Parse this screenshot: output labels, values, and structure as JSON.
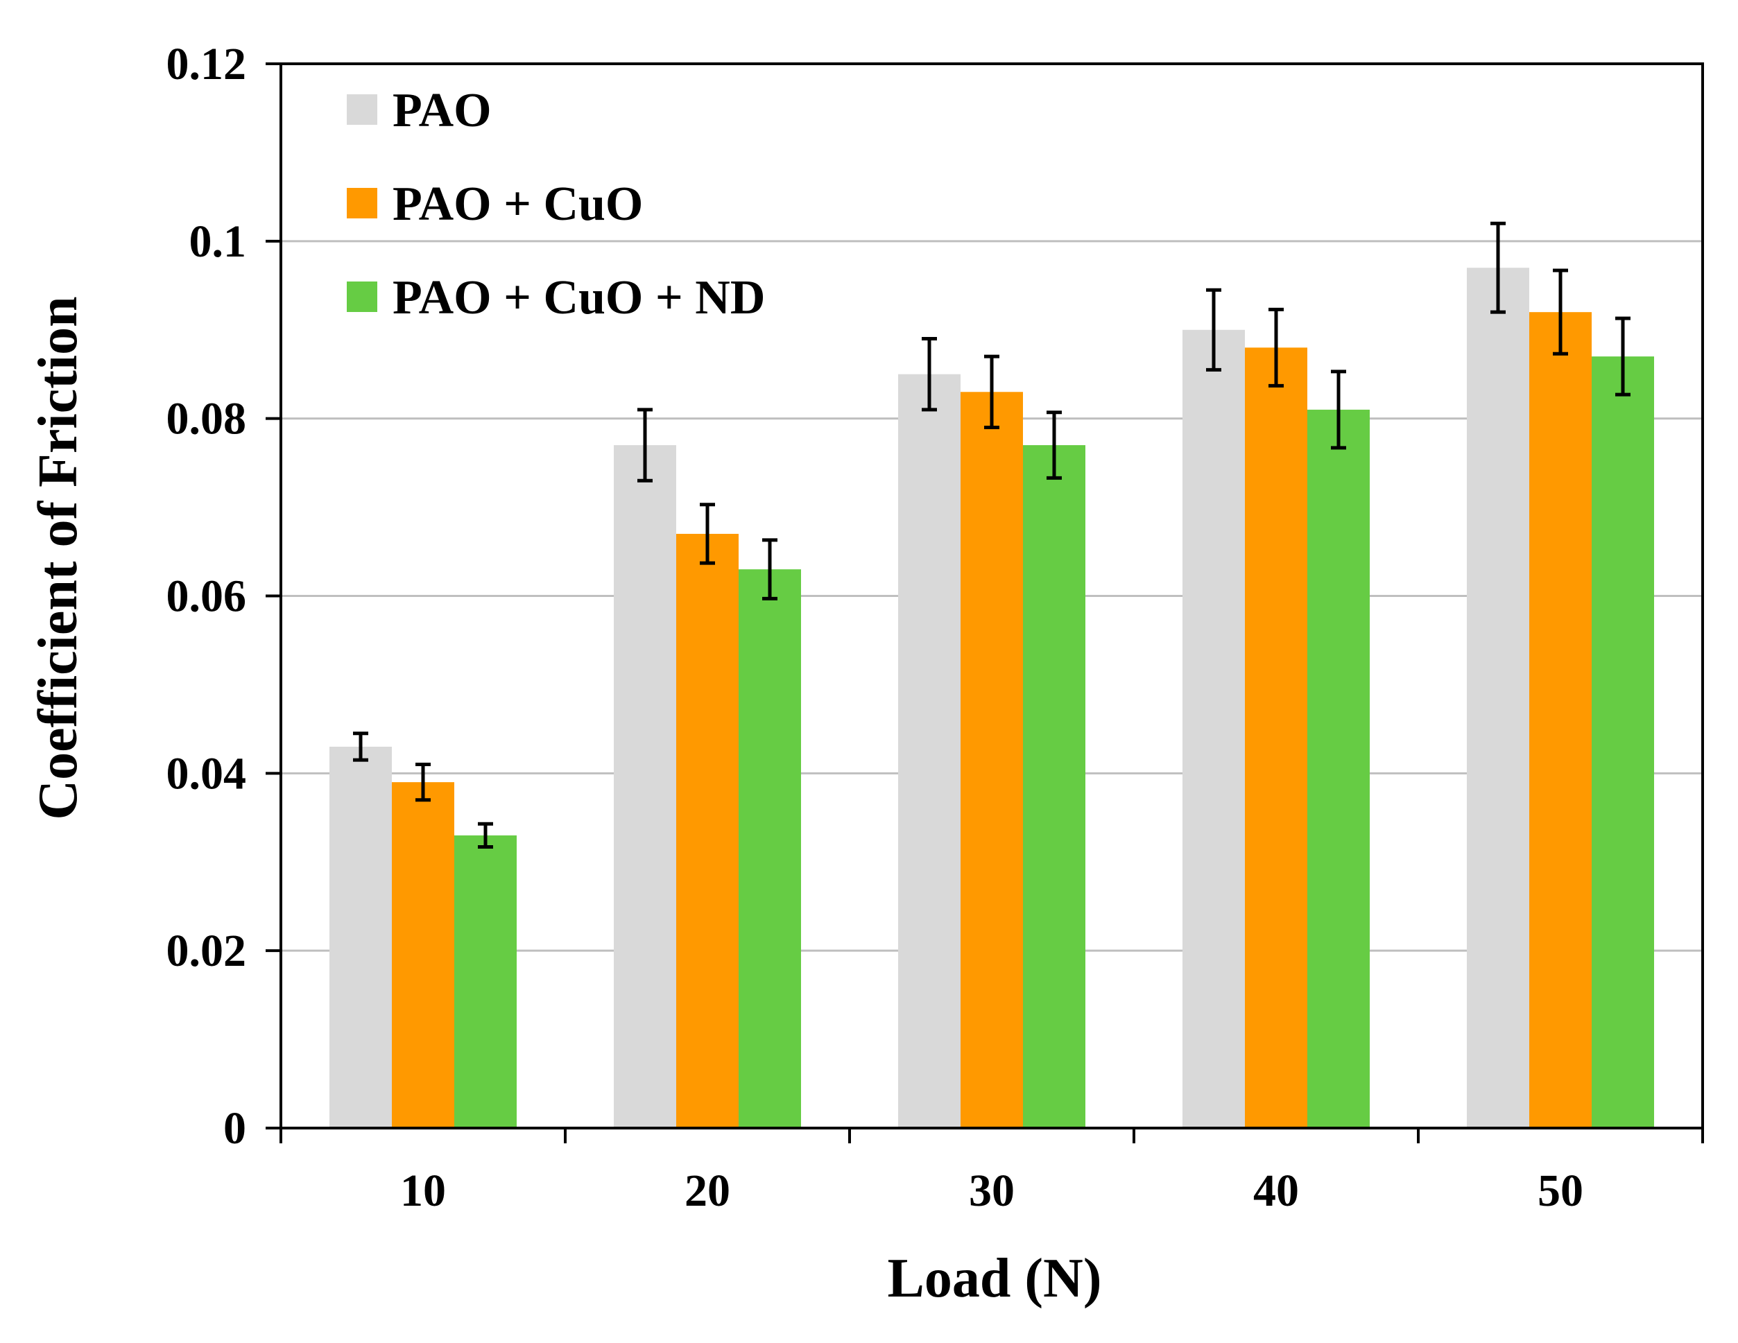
{
  "chart_data": {
    "type": "bar",
    "title": "",
    "xlabel": "Load (N)",
    "ylabel": "Coefficient of Friction",
    "categories": [
      "10",
      "20",
      "30",
      "40",
      "50"
    ],
    "ylim": [
      0,
      0.12
    ],
    "yticks": [
      0,
      0.02,
      0.04,
      0.06,
      0.08,
      0.1,
      0.12
    ],
    "ytick_labels": [
      "0",
      "0.02",
      "0.04",
      "0.06",
      "0.08",
      "0.1",
      "0.12"
    ],
    "grid": true,
    "legend_position": "top-left",
    "series": [
      {
        "name": "PAO",
        "color": "#d9d9d9",
        "values": [
          0.043,
          0.077,
          0.085,
          0.09,
          0.097
        ],
        "errors": [
          0.0015,
          0.004,
          0.004,
          0.0045,
          0.005
        ]
      },
      {
        "name": "PAO + CuO",
        "color": "#ff9900",
        "values": [
          0.039,
          0.067,
          0.083,
          0.088,
          0.092
        ],
        "errors": [
          0.002,
          0.0033,
          0.004,
          0.0043,
          0.0047
        ]
      },
      {
        "name": "PAO + CuO + ND",
        "color": "#66cc44",
        "values": [
          0.033,
          0.063,
          0.077,
          0.081,
          0.087
        ],
        "errors": [
          0.0013,
          0.0033,
          0.0037,
          0.0043,
          0.0043
        ]
      }
    ]
  }
}
